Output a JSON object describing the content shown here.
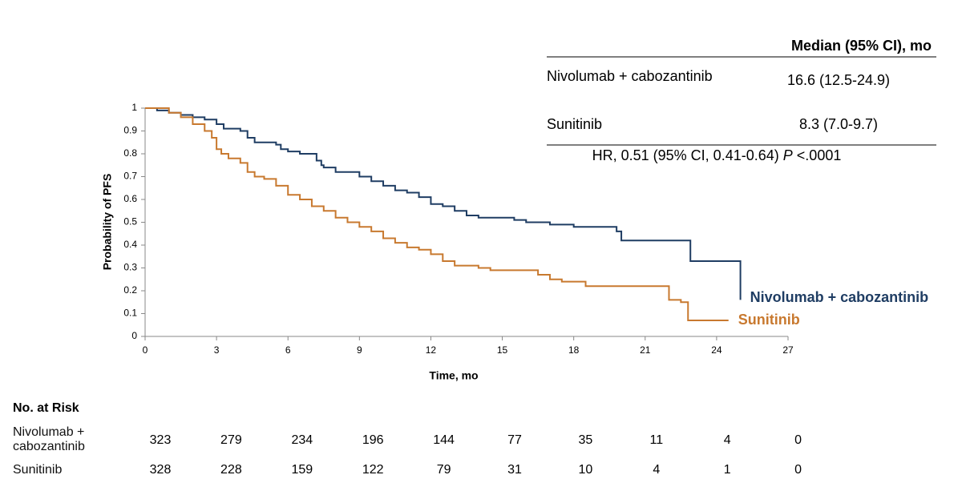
{
  "chart_data": {
    "type": "line",
    "step": true,
    "ylabel": "Probability of PFS",
    "xlabel": "Time, mo",
    "xlim": [
      0,
      27
    ],
    "xticks": [
      0,
      3,
      6,
      9,
      12,
      15,
      18,
      21,
      24,
      27
    ],
    "ylim": [
      0,
      1
    ],
    "yticks": [
      0,
      0.1,
      0.2,
      0.3,
      0.4,
      0.5,
      0.6,
      0.7,
      0.8,
      0.9,
      1
    ],
    "series": [
      {
        "name": "Nivolumab + cabozantinib",
        "color": "#1f3d63",
        "x": [
          0,
          0.5,
          1,
          1.5,
          2,
          2.5,
          3,
          3.3,
          4,
          4.3,
          4.6,
          5.5,
          5.7,
          6,
          6.5,
          7.2,
          7.4,
          7.5,
          8,
          9,
          9.5,
          10,
          10.5,
          11,
          11.5,
          12,
          12.5,
          13,
          13.5,
          14,
          15,
          15.5,
          16,
          17,
          18,
          19.5,
          19.8,
          20,
          22.8,
          22.9,
          24.9,
          25
        ],
        "values": [
          1.0,
          0.99,
          0.98,
          0.97,
          0.96,
          0.95,
          0.93,
          0.91,
          0.9,
          0.87,
          0.85,
          0.84,
          0.82,
          0.81,
          0.8,
          0.77,
          0.75,
          0.74,
          0.72,
          0.7,
          0.68,
          0.66,
          0.64,
          0.63,
          0.61,
          0.58,
          0.57,
          0.55,
          0.53,
          0.52,
          0.52,
          0.51,
          0.5,
          0.49,
          0.48,
          0.48,
          0.46,
          0.42,
          0.42,
          0.33,
          0.33,
          0.16
        ]
      },
      {
        "name": "Sunitinib",
        "color": "#c8792f",
        "x": [
          0,
          1,
          1.5,
          2,
          2.5,
          2.8,
          3,
          3.2,
          3.5,
          4,
          4.3,
          4.6,
          5,
          5.5,
          6,
          6.5,
          7,
          7.5,
          8,
          8.5,
          9,
          9.5,
          10,
          10.5,
          11,
          11.5,
          12,
          12.5,
          13,
          14,
          14.5,
          16,
          16.5,
          17,
          17.5,
          18.5,
          20,
          22,
          22.5,
          22.8,
          24.5
        ],
        "values": [
          1.0,
          0.98,
          0.96,
          0.93,
          0.9,
          0.87,
          0.82,
          0.8,
          0.78,
          0.76,
          0.72,
          0.7,
          0.69,
          0.66,
          0.62,
          0.6,
          0.57,
          0.55,
          0.52,
          0.5,
          0.48,
          0.46,
          0.43,
          0.41,
          0.39,
          0.38,
          0.36,
          0.33,
          0.31,
          0.3,
          0.29,
          0.29,
          0.27,
          0.25,
          0.24,
          0.22,
          0.22,
          0.16,
          0.15,
          0.07,
          0.07
        ]
      }
    ]
  },
  "summary_table": {
    "header": "Median (95% CI), mo",
    "rows": [
      [
        "Nivolumab + cabozantinib",
        "16.6 (12.5-24.9)"
      ],
      [
        "Sunitinib",
        "8.3 (7.0-9.7)"
      ]
    ],
    "hr": {
      "text": "HR, 0.51 (95% CI, 0.41-0.64)",
      "p_label": "P",
      "p_value": "<.0001"
    }
  },
  "risk_table": {
    "title": "No. at Risk",
    "rows": [
      {
        "name": "Nivolumab + cabozantinib",
        "counts": [
          323,
          279,
          234,
          196,
          144,
          77,
          35,
          11,
          4,
          0
        ]
      },
      {
        "name": "Sunitinib",
        "counts": [
          328,
          228,
          159,
          122,
          79,
          31,
          10,
          4,
          1,
          0
        ]
      }
    ]
  }
}
